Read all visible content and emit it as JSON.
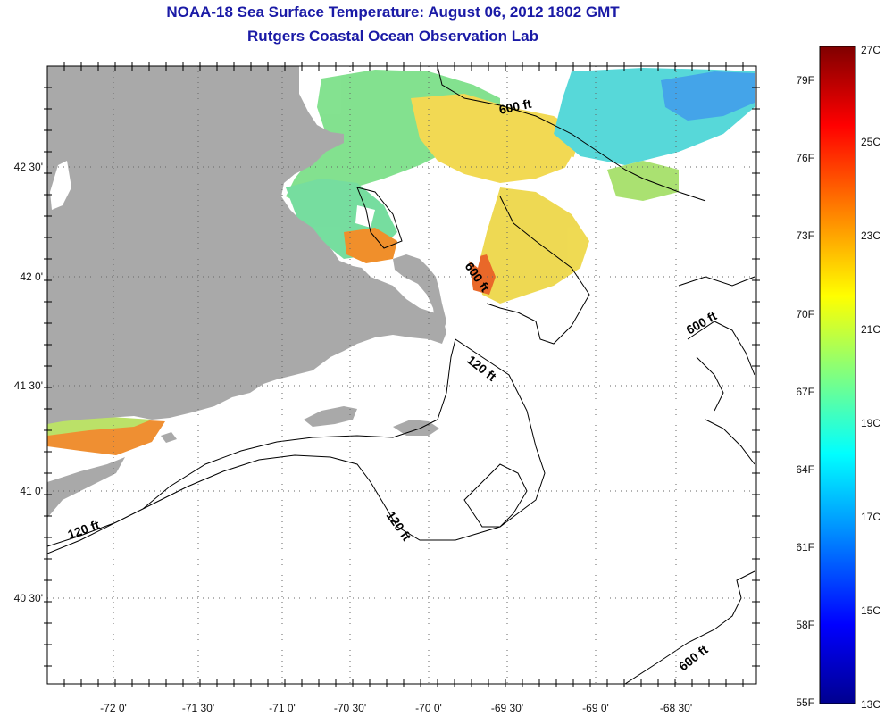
{
  "title": {
    "line1": "NOAA-18 Sea Surface Temperature:  August 06, 2012 1802 GMT",
    "line2": "Rutgers Coastal Ocean Observation Lab"
  },
  "map": {
    "lat_labels": [
      "42 30'",
      "42 0'",
      "41 30'",
      "41 0'",
      "40 30'"
    ],
    "lon_labels": [
      "-72 0'",
      "-71 30'",
      "-71 0'",
      "-70 30'",
      "-70 0'",
      "-69 30'",
      "-69 0'",
      "-68 30'"
    ],
    "contour_labels": [
      "600 ft",
      "600 ft",
      "600 ft",
      "120 ft",
      "120 ft",
      "120 ft",
      "600 ft"
    ],
    "colors": {
      "land": "#a9a9a9",
      "background": "#ffffff",
      "title_text": "#1a1aa6"
    }
  },
  "colorbar": {
    "fahrenheit_labels": [
      "79F",
      "76F",
      "73F",
      "70F",
      "67F",
      "64F",
      "61F",
      "58F",
      "55F"
    ],
    "celsius_labels": [
      "27C",
      "25C",
      "23C",
      "21C",
      "19C",
      "17C",
      "15C",
      "13C"
    ],
    "range_c": [
      13,
      27
    ],
    "colors": [
      "#00008f",
      "#0000ff",
      "#00a0ff",
      "#00ffff",
      "#80ff80",
      "#ffff00",
      "#ff8000",
      "#ff0000",
      "#800000"
    ]
  }
}
